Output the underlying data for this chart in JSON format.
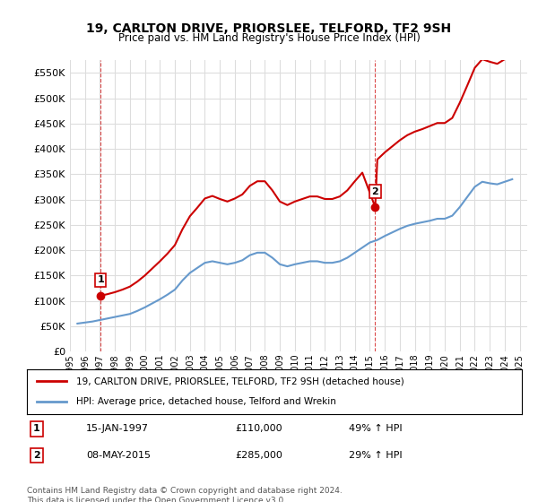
{
  "title": "19, CARLTON DRIVE, PRIORSLEE, TELFORD, TF2 9SH",
  "subtitle": "Price paid vs. HM Land Registry's House Price Index (HPI)",
  "legend_line1": "19, CARLTON DRIVE, PRIORSLEE, TELFORD, TF2 9SH (detached house)",
  "legend_line2": "HPI: Average price, detached house, Telford and Wrekin",
  "annotation1": {
    "label": "1",
    "date": "15-JAN-1997",
    "price": "£110,000",
    "hpi": "49% ↑ HPI",
    "x_year": 1997.04,
    "y_val": 110000
  },
  "annotation2": {
    "label": "2",
    "date": "08-MAY-2015",
    "price": "£285,000",
    "hpi": "29% ↑ HPI",
    "x_year": 2015.36,
    "y_val": 285000
  },
  "footer": "Contains HM Land Registry data © Crown copyright and database right 2024.\nThis data is licensed under the Open Government Licence v3.0.",
  "ylim": [
    0,
    575000
  ],
  "yticks": [
    0,
    50000,
    100000,
    150000,
    200000,
    250000,
    300000,
    350000,
    400000,
    450000,
    500000,
    550000
  ],
  "xlim_start": 1995.0,
  "xlim_end": 2025.5,
  "red_color": "#cc0000",
  "blue_color": "#6699cc",
  "grid_color": "#dddddd",
  "bg_color": "#ffffff",
  "vline_color": "#cc0000",
  "hpi_data": {
    "years": [
      1995.5,
      1996.0,
      1996.5,
      1997.0,
      1997.5,
      1998.0,
      1998.5,
      1999.0,
      1999.5,
      2000.0,
      2000.5,
      2001.0,
      2001.5,
      2002.0,
      2002.5,
      2003.0,
      2003.5,
      2004.0,
      2004.5,
      2005.0,
      2005.5,
      2006.0,
      2006.5,
      2007.0,
      2007.5,
      2008.0,
      2008.5,
      2009.0,
      2009.5,
      2010.0,
      2010.5,
      2011.0,
      2011.5,
      2012.0,
      2012.5,
      2013.0,
      2013.5,
      2014.0,
      2014.5,
      2015.0,
      2015.5,
      2016.0,
      2016.5,
      2017.0,
      2017.5,
      2018.0,
      2018.5,
      2019.0,
      2019.5,
      2020.0,
      2020.5,
      2021.0,
      2021.5,
      2022.0,
      2022.5,
      2023.0,
      2023.5,
      2024.0,
      2024.5
    ],
    "values": [
      55000,
      57000,
      59000,
      62000,
      65000,
      68000,
      71000,
      74000,
      80000,
      87000,
      95000,
      103000,
      112000,
      122000,
      140000,
      155000,
      165000,
      175000,
      178000,
      175000,
      172000,
      175000,
      180000,
      190000,
      195000,
      195000,
      185000,
      172000,
      168000,
      172000,
      175000,
      178000,
      178000,
      175000,
      175000,
      178000,
      185000,
      195000,
      205000,
      215000,
      220000,
      228000,
      235000,
      242000,
      248000,
      252000,
      255000,
      258000,
      262000,
      262000,
      268000,
      285000,
      305000,
      325000,
      335000,
      332000,
      330000,
      335000,
      340000
    ]
  },
  "property_data": {
    "years": [
      1997.04,
      2015.36
    ],
    "values": [
      110000,
      285000
    ]
  },
  "property_line_data": {
    "years": [
      1997.04,
      1997.5,
      1998.0,
      1998.5,
      1999.0,
      1999.5,
      2000.0,
      2000.5,
      2001.0,
      2001.5,
      2002.0,
      2002.5,
      2003.0,
      2003.5,
      2004.0,
      2004.5,
      2005.0,
      2005.5,
      2006.0,
      2006.5,
      2007.0,
      2007.5,
      2008.0,
      2008.5,
      2009.0,
      2009.5,
      2010.0,
      2010.5,
      2011.0,
      2011.5,
      2012.0,
      2012.5,
      2013.0,
      2013.5,
      2014.0,
      2014.5,
      2015.36,
      2015.5,
      2016.0,
      2016.5,
      2017.0,
      2017.5,
      2018.0,
      2018.5,
      2019.0,
      2019.5,
      2020.0,
      2020.5,
      2021.0,
      2021.5,
      2022.0,
      2022.5,
      2023.0,
      2023.5,
      2024.0,
      2024.5
    ],
    "values": [
      110000,
      113000,
      117000,
      122000,
      128000,
      138000,
      150000,
      164000,
      178000,
      193000,
      210000,
      241000,
      267000,
      284000,
      302000,
      307000,
      301000,
      296000,
      302000,
      310000,
      327000,
      336000,
      336000,
      318000,
      296000,
      289000,
      296000,
      301000,
      306000,
      306000,
      301000,
      301000,
      306000,
      318000,
      336000,
      353000,
      285000,
      379000,
      393000,
      405000,
      417000,
      427000,
      434000,
      439000,
      445000,
      451000,
      451000,
      461000,
      491000,
      525000,
      560000,
      577000,
      572000,
      568000,
      577000,
      585000
    ]
  }
}
